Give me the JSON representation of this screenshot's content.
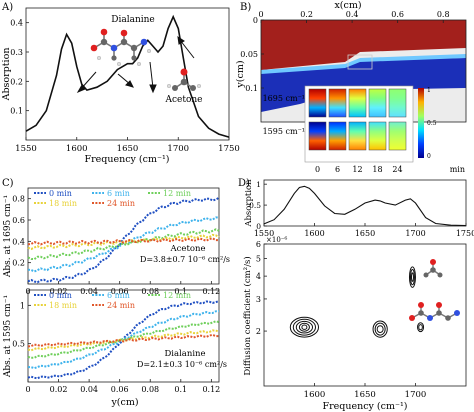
{
  "figure": {
    "panels": [
      {
        "label": "A)"
      },
      {
        "label": "B)"
      },
      {
        "label": "C)"
      },
      {
        "label": "D)"
      }
    ]
  },
  "panel_a": {
    "annotations": {
      "dialanine": "Dialanine",
      "acetone": "Acetone"
    },
    "molecules": [
      "dialanine-molecule-icon",
      "acetone-molecule-icon"
    ]
  },
  "panel_b": {
    "legend_values": [
      "0",
      "0.5",
      "1"
    ],
    "inset_row_labels": [
      "1695 cm⁻¹",
      "1595 cm⁻¹"
    ],
    "inset_col_labels": [
      "0",
      "6",
      "12",
      "18",
      "24"
    ],
    "inset_unit": "min",
    "colors": {
      "top_channel": "#a3201c",
      "bottom_channel": "#1b2fb8",
      "interface": "#6fc8ff"
    }
  },
  "panel_c": {
    "top_annotation_name": "Acetone",
    "top_annotation_value": "D=3.8±0.7  10⁻⁶ cm²/s",
    "bottom_annotation_name": "Dialanine",
    "bottom_annotation_value": "D=2.1±0.3  10⁻⁶ cm²/s"
  },
  "panel_d": {
    "exponent_label": "×10⁻⁶",
    "molecules": [
      "acetone-molecule-icon",
      "dialanine-molecule-icon"
    ]
  },
  "chart_data": [
    {
      "id": "A",
      "type": "line",
      "xlabel": "Frequency (cm⁻¹)",
      "ylabel": "Absorption",
      "xlim": [
        1550,
        1750
      ],
      "ylim": [
        0,
        0.45
      ],
      "x_ticks": [
        1550,
        1600,
        1650,
        1700,
        1750
      ],
      "y_ticks": [
        0.1,
        0.2,
        0.3,
        0.4
      ],
      "series": [
        {
          "x": [
            1550,
            1560,
            1570,
            1580,
            1585,
            1590,
            1595,
            1600,
            1605,
            1610,
            1620,
            1630,
            1640,
            1650,
            1655,
            1660,
            1665,
            1670,
            1675,
            1680,
            1685,
            1690,
            1695,
            1700,
            1705,
            1710,
            1720,
            1730,
            1740,
            1750
          ],
          "y": [
            0.03,
            0.05,
            0.1,
            0.22,
            0.31,
            0.36,
            0.33,
            0.25,
            0.19,
            0.17,
            0.18,
            0.2,
            0.24,
            0.26,
            0.26,
            0.28,
            0.32,
            0.34,
            0.32,
            0.3,
            0.32,
            0.38,
            0.42,
            0.38,
            0.28,
            0.18,
            0.08,
            0.04,
            0.02,
            0.01
          ]
        }
      ]
    },
    {
      "id": "B",
      "type": "heatmap",
      "xlabel": "x(cm)",
      "ylabel": "y(cm)",
      "xlim": [
        0,
        0.9
      ],
      "ylim": [
        0,
        0.15
      ],
      "x_ticks": [
        0,
        0.2,
        0.4,
        0.6,
        0.8
      ],
      "y_ticks": [
        0,
        0.05,
        0.1
      ]
    },
    {
      "id": "C-top",
      "type": "scatter",
      "ylabel": "Abs. at 1695 cm⁻¹",
      "xlabel": "",
      "xlim": [
        0,
        0.125
      ],
      "ylim": [
        0,
        0.9
      ],
      "x_ticks": [
        0,
        0.02,
        0.04,
        0.06,
        0.08,
        0.1,
        0.12
      ],
      "y_ticks": [
        0.2,
        0.4,
        0.6,
        0.8
      ],
      "series": [
        {
          "name": "0 min",
          "color": "#1f4fc2",
          "low": 0.02,
          "high": 0.8,
          "width": 0.012
        },
        {
          "name": "6 min",
          "color": "#3fb3ec",
          "low": 0.1,
          "high": 0.64,
          "width": 0.02
        },
        {
          "name": "12 min",
          "color": "#6fcf5b",
          "low": 0.2,
          "high": 0.54,
          "width": 0.03
        },
        {
          "name": "18 min",
          "color": "#e8d23a",
          "low": 0.3,
          "high": 0.49,
          "width": 0.045
        },
        {
          "name": "24 min",
          "color": "#e0572a",
          "low": 0.36,
          "high": 0.44,
          "width": 0.06
        }
      ]
    },
    {
      "id": "C-bottom",
      "type": "scatter",
      "ylabel": "Abs. at 1595 cm⁻¹",
      "xlabel": "y(cm)",
      "xlim": [
        0,
        0.125
      ],
      "ylim": [
        0,
        1.2
      ],
      "x_ticks": [
        0,
        0.02,
        0.04,
        0.06,
        0.08,
        0.1,
        0.12
      ],
      "y_ticks": [
        0.5,
        1
      ],
      "series": [
        {
          "name": "0 min",
          "color": "#1f4fc2",
          "low": 0.05,
          "high": 1.05,
          "width": 0.012
        },
        {
          "name": "6 min",
          "color": "#3fb3ec",
          "low": 0.15,
          "high": 0.95,
          "width": 0.02
        },
        {
          "name": "12 min",
          "color": "#6fcf5b",
          "low": 0.25,
          "high": 0.85,
          "width": 0.03
        },
        {
          "name": "18 min",
          "color": "#e8d23a",
          "low": 0.34,
          "high": 0.75,
          "width": 0.045
        },
        {
          "name": "24 min",
          "color": "#e0572a",
          "low": 0.4,
          "high": 0.68,
          "width": 0.06
        }
      ]
    },
    {
      "id": "D-top",
      "type": "line",
      "ylabel": "Absorption",
      "xlabel": "",
      "xlim": [
        1550,
        1750
      ],
      "ylim": [
        0,
        1.1
      ],
      "x_ticks": [
        1550,
        1600,
        1650,
        1700,
        1750
      ],
      "y_ticks": [
        0,
        0.5,
        1
      ],
      "series": [
        {
          "x": [
            1550,
            1560,
            1570,
            1580,
            1585,
            1590,
            1595,
            1600,
            1610,
            1620,
            1630,
            1640,
            1650,
            1660,
            1665,
            1670,
            1680,
            1690,
            1695,
            1700,
            1710,
            1720,
            1735,
            1750
          ],
          "y": [
            0.05,
            0.15,
            0.4,
            0.78,
            0.92,
            0.95,
            0.9,
            0.78,
            0.48,
            0.3,
            0.28,
            0.4,
            0.55,
            0.62,
            0.6,
            0.55,
            0.5,
            0.62,
            0.65,
            0.55,
            0.2,
            0.06,
            0.02,
            0.01
          ]
        }
      ]
    },
    {
      "id": "D-bottom",
      "type": "scatter",
      "ylabel": "Diffusion coefficient (cm²/s)",
      "xlabel": "Frequency (cm⁻¹)",
      "xlim": [
        1550,
        1750
      ],
      "ylim": [
        1,
        6
      ],
      "y_scale": "log",
      "x_ticks": [
        1600,
        1650,
        1700
      ],
      "y_ticks": [
        2,
        3,
        4,
        5,
        6
      ],
      "contours": [
        {
          "x": 1590,
          "y": 2.1,
          "rx": [
            14,
            11,
            8,
            5,
            2.5
          ],
          "ry": [
            0.28,
            0.22,
            0.16,
            0.11,
            0.06
          ]
        },
        {
          "x": 1665,
          "y": 2.05,
          "rx": [
            7,
            5,
            3
          ],
          "ry": [
            0.22,
            0.16,
            0.09
          ]
        },
        {
          "x": 1697,
          "y": 3.95,
          "rx": [
            3,
            2,
            1
          ],
          "ry": [
            0.55,
            0.4,
            0.22
          ]
        },
        {
          "x": 1705,
          "y": 2.1,
          "rx": [
            3,
            1.8
          ],
          "ry": [
            0.12,
            0.07
          ]
        }
      ]
    }
  ]
}
